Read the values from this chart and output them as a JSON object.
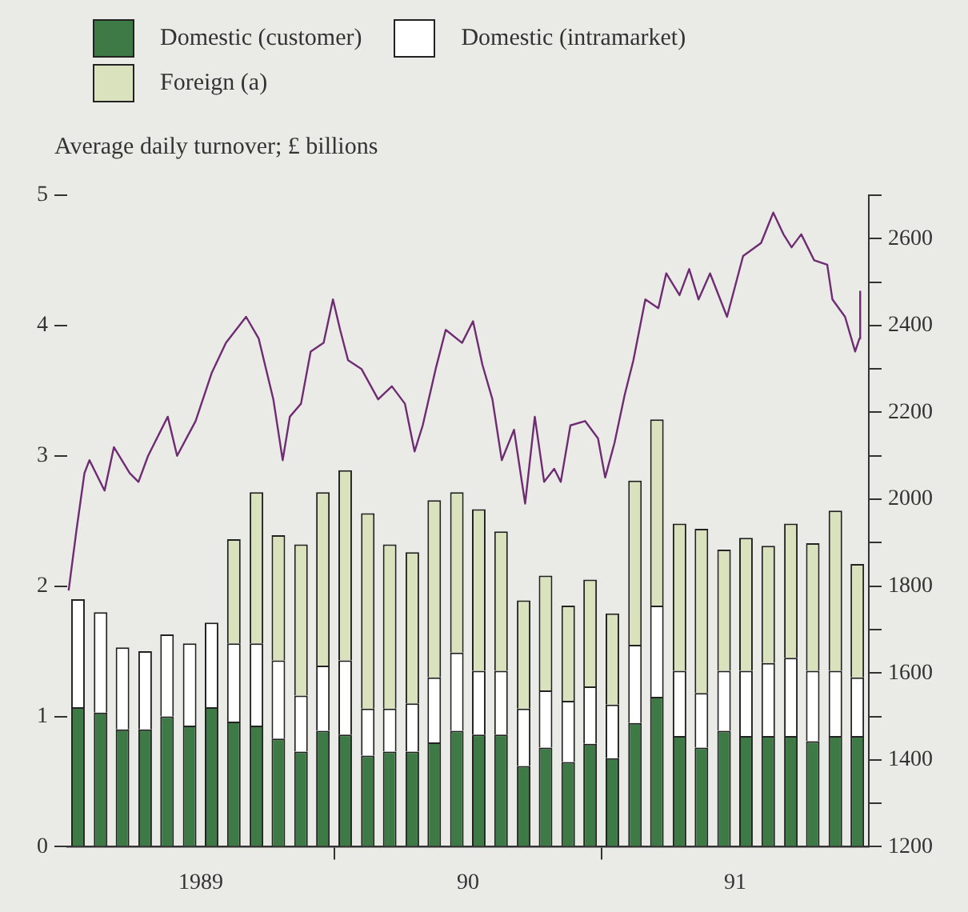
{
  "chart_data": {
    "type": "bar",
    "ylabel": "Average daily turnover; £ billions",
    "stacked": true,
    "legend": "top left",
    "marker": "none",
    "grid": false,
    "x": [
      "1989-01-16",
      "1989-02-15",
      "1989-03-16",
      "1989-04-16",
      "1989-05-16",
      "1989-06-16",
      "1989-07-16",
      "1989-08-16",
      "1989-09-16",
      "1989-10-16",
      "1989-11-16",
      "1989-12-16",
      "1990-01-16",
      "1990-02-15",
      "1990-03-16",
      "1990-04-16",
      "1990-05-16",
      "1990-06-16",
      "1990-07-16",
      "1990-08-16",
      "1990-09-16",
      "1990-10-16",
      "1990-11-16",
      "1990-12-16",
      "1991-01-16",
      "1991-02-15",
      "1991-03-16",
      "1991-04-16",
      "1991-05-16",
      "1991-06-16",
      "1991-07-16",
      "1991-08-16",
      "1991-09-16",
      "1991-10-16",
      "1991-11-16",
      "1991-12-16"
    ],
    "xlim": [
      "1989-01-01",
      "1992-01-01"
    ],
    "xticks": [
      {
        "value": "1989-07-01",
        "label": "1989"
      },
      {
        "value": "1990-01-01",
        "label": null
      },
      {
        "value": "1990-07-01",
        "label": "90"
      },
      {
        "value": "1991-01-01",
        "label": null
      },
      {
        "value": "1991-07-01",
        "label": "91"
      }
    ],
    "ylim": [
      0,
      5
    ],
    "yticks": [
      0,
      1,
      2,
      3,
      4,
      5
    ],
    "y2lim": [
      1200,
      2700
    ],
    "y2ticks": [
      1200,
      {
        "value": 1300,
        "label": null
      },
      1400,
      {
        "value": 1500,
        "label": null
      },
      1600,
      {
        "value": 1700,
        "label": null
      },
      1800,
      {
        "value": 1900,
        "label": null
      },
      2000,
      {
        "value": 2100,
        "label": null
      },
      2200,
      {
        "value": 2300,
        "label": null
      },
      2400,
      {
        "value": 2500,
        "label": null
      },
      2600,
      {
        "value": 2700,
        "label": null
      }
    ],
    "series": [
      {
        "name": "Domestic (customer)",
        "color": "#3d7a45",
        "values": [
          1.07,
          1.03,
          0.9,
          0.9,
          1.0,
          0.93,
          1.07,
          0.96,
          0.93,
          0.83,
          0.73,
          0.89,
          0.86,
          0.7,
          0.73,
          0.73,
          0.8,
          0.89,
          0.86,
          0.86,
          0.62,
          0.76,
          0.65,
          0.79,
          0.68,
          0.95,
          1.15,
          0.85,
          0.76,
          0.89,
          0.85,
          0.85,
          0.85,
          0.81,
          0.85,
          0.85
        ]
      },
      {
        "name": "Domestic (intramarket)",
        "color": "#ffffff",
        "values": [
          0.83,
          0.77,
          0.63,
          0.6,
          0.63,
          0.63,
          0.65,
          0.6,
          0.63,
          0.6,
          0.43,
          0.5,
          0.57,
          0.36,
          0.33,
          0.37,
          0.5,
          0.6,
          0.49,
          0.49,
          0.44,
          0.44,
          0.47,
          0.44,
          0.41,
          0.6,
          0.7,
          0.5,
          0.42,
          0.46,
          0.5,
          0.56,
          0.6,
          0.54,
          0.5,
          0.45
        ]
      },
      {
        "name": "Foreign (a)",
        "color": "#d9e2bd",
        "values": [
          null,
          null,
          null,
          null,
          null,
          null,
          null,
          0.8,
          1.16,
          0.96,
          1.16,
          1.33,
          1.46,
          1.5,
          1.26,
          1.16,
          1.36,
          1.23,
          1.24,
          1.07,
          0.83,
          0.88,
          0.73,
          0.82,
          0.7,
          1.26,
          1.43,
          1.13,
          1.26,
          0.93,
          1.02,
          0.9,
          1.03,
          0.98,
          1.23,
          0.87
        ]
      },
      {
        "type": "line",
        "axis": "y2",
        "color": "#6e2c72",
        "x": [
          "1989-01-03",
          "1989-01-14",
          "1989-01-25",
          "1989-02-01",
          "1989-02-20",
          "1989-03-04",
          "1989-03-26",
          "1989-04-07",
          "1989-04-20",
          "1989-05-17",
          "1989-05-30",
          "1989-06-24",
          "1989-07-16",
          "1989-08-05",
          "1989-09-02",
          "1989-09-19",
          "1989-10-09",
          "1989-10-22",
          "1989-11-01",
          "1989-11-16",
          "1989-11-29",
          "1989-12-17",
          "1989-12-30",
          "1990-01-09",
          "1990-01-20",
          "1990-02-07",
          "1990-02-28",
          "1990-03-19",
          "1990-04-06",
          "1990-04-19",
          "1990-04-30",
          "1990-05-18",
          "1990-06-01",
          "1990-06-23",
          "1990-07-08",
          "1990-07-21",
          "1990-08-04",
          "1990-08-17",
          "1990-09-03",
          "1990-09-18",
          "1990-10-01",
          "1990-10-14",
          "1990-10-28",
          "1990-11-06",
          "1990-11-19",
          "1990-12-09",
          "1990-12-27",
          "1991-01-06",
          "1991-01-19",
          "1991-02-02",
          "1991-02-13",
          "1991-02-28",
          "1991-03-18",
          "1991-03-29",
          "1991-04-16",
          "1991-04-29",
          "1991-05-12",
          "1991-05-28",
          "1991-06-20",
          "1991-07-12",
          "1991-08-06",
          "1991-08-23",
          "1991-09-06",
          "1991-09-17",
          "1991-09-30",
          "1991-10-18",
          "1991-11-05",
          "1991-11-12",
          "1991-11-29",
          "1991-12-13",
          "1991-12-19",
          "1991-12-20"
        ],
        "values": [
          1790,
          1930,
          2060,
          2090,
          2020,
          2120,
          2060,
          2040,
          2100,
          2190,
          2100,
          2180,
          2290,
          2360,
          2420,
          2370,
          2230,
          2090,
          2190,
          2220,
          2340,
          2360,
          2460,
          2390,
          2320,
          2300,
          2230,
          2260,
          2220,
          2110,
          2170,
          2300,
          2390,
          2360,
          2410,
          2310,
          2230,
          2090,
          2160,
          1990,
          2190,
          2040,
          2070,
          2040,
          2170,
          2180,
          2140,
          2050,
          2130,
          2240,
          2320,
          2460,
          2440,
          2520,
          2470,
          2530,
          2460,
          2520,
          2420,
          2560,
          2590,
          2660,
          2610,
          2580,
          2610,
          2550,
          2540,
          2460,
          2420,
          2340,
          2370,
          2480
        ]
      }
    ]
  }
}
